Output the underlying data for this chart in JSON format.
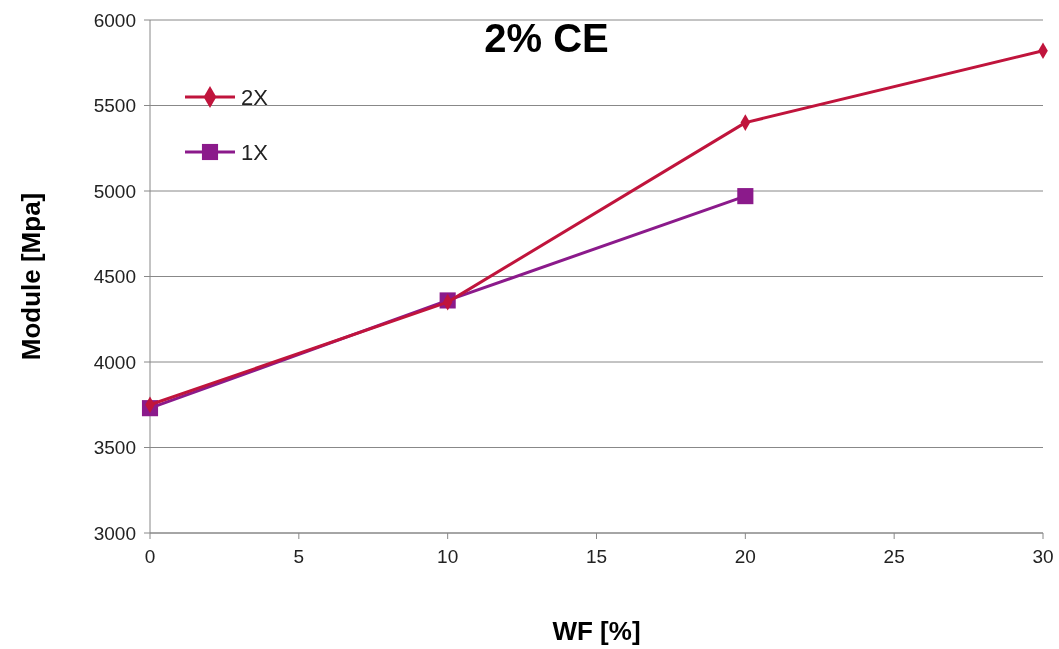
{
  "chart_data": {
    "type": "line",
    "title": "2% CE",
    "xlabel": "WF [%]",
    "ylabel": "Module [Mpa]",
    "x": [
      0,
      10,
      20,
      30
    ],
    "series": [
      {
        "name": "2X",
        "color": "#c0143c",
        "marker": "diamond",
        "values": [
          3750,
          4350,
          5400,
          5820
        ]
      },
      {
        "name": "1X",
        "color": "#8b1a8b",
        "marker": "square",
        "values": [
          3730,
          4360,
          4970,
          null
        ]
      }
    ],
    "xlim": [
      0,
      30
    ],
    "xticks": [
      0,
      5,
      10,
      15,
      20,
      25,
      30
    ],
    "ylim": [
      3000,
      6000
    ],
    "yticks": [
      3000,
      3500,
      4000,
      4500,
      5000,
      5500,
      6000
    ],
    "grid": "y",
    "legend": "top left",
    "line_style": "solid"
  }
}
